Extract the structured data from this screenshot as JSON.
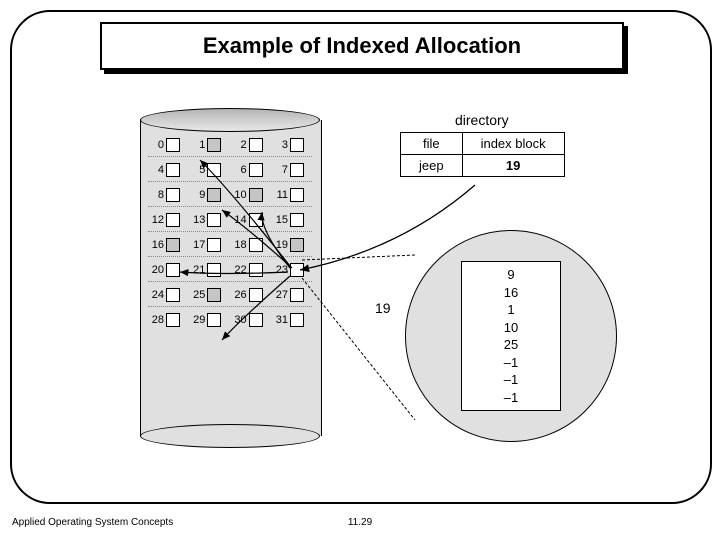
{
  "title": "Example of Indexed Allocation",
  "footer_left": "Applied Operating System Concepts",
  "footer_center": "11.29",
  "directory": {
    "label": "directory",
    "headers": [
      "file",
      "index block"
    ],
    "row": [
      "jeep",
      "19"
    ]
  },
  "disk": {
    "rows": [
      [
        {
          "n": "0",
          "f": 0
        },
        {
          "n": "1",
          "f": 1
        },
        {
          "n": "2",
          "f": 0
        },
        {
          "n": "3",
          "f": 0
        }
      ],
      [
        {
          "n": "4",
          "f": 0
        },
        {
          "n": "5",
          "f": 0
        },
        {
          "n": "6",
          "f": 0
        },
        {
          "n": "7",
          "f": 0
        }
      ],
      [
        {
          "n": "8",
          "f": 0
        },
        {
          "n": "9",
          "f": 1
        },
        {
          "n": "10",
          "f": 1
        },
        {
          "n": "11",
          "f": 0
        }
      ],
      [
        {
          "n": "12",
          "f": 0
        },
        {
          "n": "13",
          "f": 0
        },
        {
          "n": "14",
          "f": 0
        },
        {
          "n": "15",
          "f": 0
        }
      ],
      [
        {
          "n": "16",
          "f": 1
        },
        {
          "n": "17",
          "f": 0
        },
        {
          "n": "18",
          "f": 0
        },
        {
          "n": "19",
          "f": 1
        }
      ],
      [
        {
          "n": "20",
          "f": 0
        },
        {
          "n": "21",
          "f": 0
        },
        {
          "n": "22",
          "f": 0
        },
        {
          "n": "23",
          "f": 0
        }
      ],
      [
        {
          "n": "24",
          "f": 0
        },
        {
          "n": "25",
          "f": 1
        },
        {
          "n": "26",
          "f": 0
        },
        {
          "n": "27",
          "f": 0
        }
      ],
      [
        {
          "n": "28",
          "f": 0
        },
        {
          "n": "29",
          "f": 0
        },
        {
          "n": "30",
          "f": 0
        },
        {
          "n": "31",
          "f": 0
        }
      ]
    ]
  },
  "index_block": {
    "label": "19",
    "entries": [
      "9",
      "16",
      "1",
      "10",
      "25",
      "–1",
      "–1",
      "–1"
    ]
  },
  "colors": {
    "disk_fill": "#e0e0e0",
    "filled_block": "#c5c5c5",
    "border": "#000000"
  }
}
